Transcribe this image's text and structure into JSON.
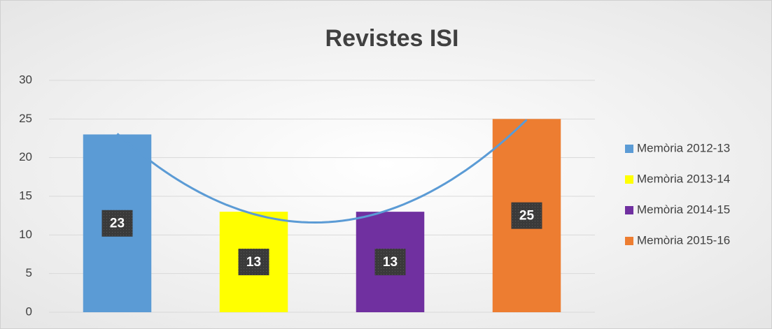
{
  "chart_data": {
    "type": "bar",
    "title": "Revistes ISI",
    "series": [
      {
        "name": "Memòria 2012-13",
        "color": "#5b9bd5",
        "values": [
          23
        ]
      },
      {
        "name": "Memòria 2013-14",
        "color": "#ffff00",
        "values": [
          13
        ]
      },
      {
        "name": "Memòria 2014-15",
        "color": "#7030a0",
        "values": [
          13
        ]
      },
      {
        "name": "Memòria 2015-16",
        "color": "#ed7d31",
        "values": [
          25
        ]
      }
    ],
    "ylim": [
      0,
      30
    ],
    "yticks": [
      0,
      5,
      10,
      15,
      20,
      25,
      30
    ],
    "grid": true,
    "legend": "right",
    "trendline": {
      "type": "polynomial",
      "color": "#5b9bd5"
    }
  }
}
